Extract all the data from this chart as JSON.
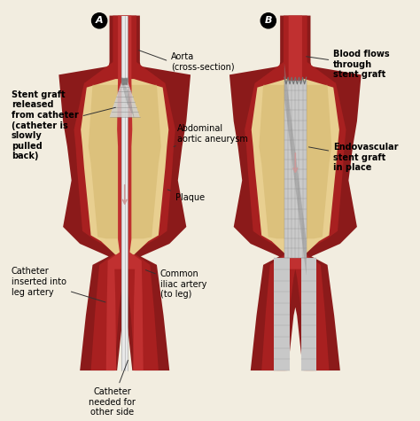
{
  "bg_color": "#f2ede0",
  "dark_red": "#7a1010",
  "med_red": "#9B1515",
  "vessel_wall": "#8B1A1A",
  "vessel_inner_top": "#c0302a",
  "plaque_color": "#e8cf90",
  "plaque_inner": "#d4b870",
  "stent_gray": "#c8c8c8",
  "stent_dark": "#909090",
  "stent_light": "#e8e8e8",
  "catheter_white": "#f0f0f0",
  "lumen_red": "#b03030",
  "label_A": "A",
  "label_B": "B",
  "text_aorta": "Aorta\n(cross-section)",
  "text_stent_graft": "Stent graft\nreleased\nfrom catheter\n(catheter is\nslowly\npulled\nback)",
  "text_abdominal": "Abdominal\naortic aneurysm",
  "text_plaque": "Plaque",
  "text_catheter_leg": "Catheter\ninserted into\nleg artery",
  "text_common_iliac": "Common\niliac artery\n(to leg)",
  "text_catheter_other": "Catheter\nneeded for\nother side",
  "text_blood_flows": "Blood flows\nthrough\nstent graft",
  "text_endovascular": "Endovascular\nstent graft\nin place"
}
